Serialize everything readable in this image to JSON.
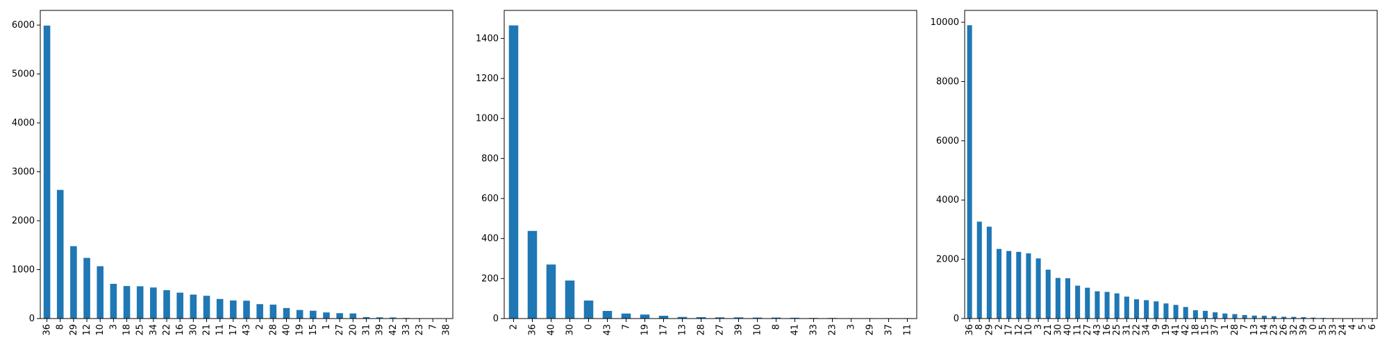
{
  "colors": {
    "bar": "#1f77b4",
    "axis": "#000000",
    "background": "#ffffff"
  },
  "chart_data": [
    {
      "type": "bar",
      "title": "",
      "xlabel": "",
      "ylabel": "",
      "ylim": [
        0,
        6300
      ],
      "yticks": [
        0,
        1000,
        2000,
        3000,
        4000,
        5000,
        6000
      ],
      "grid": false,
      "categories": [
        "36",
        "8",
        "29",
        "12",
        "10",
        "3",
        "18",
        "25",
        "34",
        "22",
        "16",
        "30",
        "21",
        "11",
        "17",
        "43",
        "2",
        "28",
        "40",
        "19",
        "15",
        "1",
        "27",
        "20",
        "31",
        "39",
        "42",
        "33",
        "23",
        "7",
        "38"
      ],
      "values": [
        5990,
        2630,
        1480,
        1240,
        1070,
        710,
        665,
        660,
        635,
        580,
        530,
        490,
        465,
        400,
        370,
        365,
        295,
        285,
        215,
        175,
        160,
        125,
        110,
        105,
        30,
        25,
        22,
        12,
        8,
        6,
        4
      ]
    },
    {
      "type": "bar",
      "title": "",
      "xlabel": "",
      "ylabel": "",
      "ylim": [
        0,
        1540
      ],
      "yticks": [
        0,
        200,
        400,
        600,
        800,
        1000,
        1200,
        1400
      ],
      "grid": false,
      "categories": [
        "2",
        "36",
        "40",
        "30",
        "0",
        "43",
        "7",
        "19",
        "17",
        "13",
        "28",
        "27",
        "39",
        "10",
        "8",
        "41",
        "33",
        "23",
        "3",
        "29",
        "37",
        "11"
      ],
      "values": [
        1465,
        438,
        270,
        190,
        90,
        38,
        25,
        20,
        14,
        8,
        7,
        6,
        6,
        5,
        5,
        4,
        3,
        3,
        2,
        2,
        2,
        2
      ]
    },
    {
      "type": "bar",
      "title": "",
      "xlabel": "",
      "ylabel": "",
      "ylim": [
        0,
        10400
      ],
      "yticks": [
        0,
        2000,
        4000,
        6000,
        8000,
        10000
      ],
      "grid": false,
      "categories": [
        "36",
        "8",
        "29",
        "2",
        "17",
        "12",
        "10",
        "3",
        "21",
        "30",
        "40",
        "11",
        "27",
        "43",
        "16",
        "25",
        "31",
        "22",
        "34",
        "9",
        "19",
        "41",
        "42",
        "18",
        "15",
        "37",
        "1",
        "28",
        "7",
        "13",
        "14",
        "23",
        "26",
        "32",
        "39",
        "0",
        "35",
        "33",
        "24",
        "4",
        "5",
        "6"
      ],
      "values": [
        9900,
        3270,
        3100,
        2350,
        2280,
        2250,
        2200,
        2030,
        1650,
        1370,
        1360,
        1110,
        1040,
        920,
        900,
        850,
        740,
        650,
        620,
        580,
        510,
        460,
        390,
        280,
        260,
        210,
        170,
        150,
        120,
        100,
        95,
        80,
        60,
        55,
        45,
        30,
        20,
        15,
        10,
        8,
        6,
        5
      ]
    }
  ]
}
